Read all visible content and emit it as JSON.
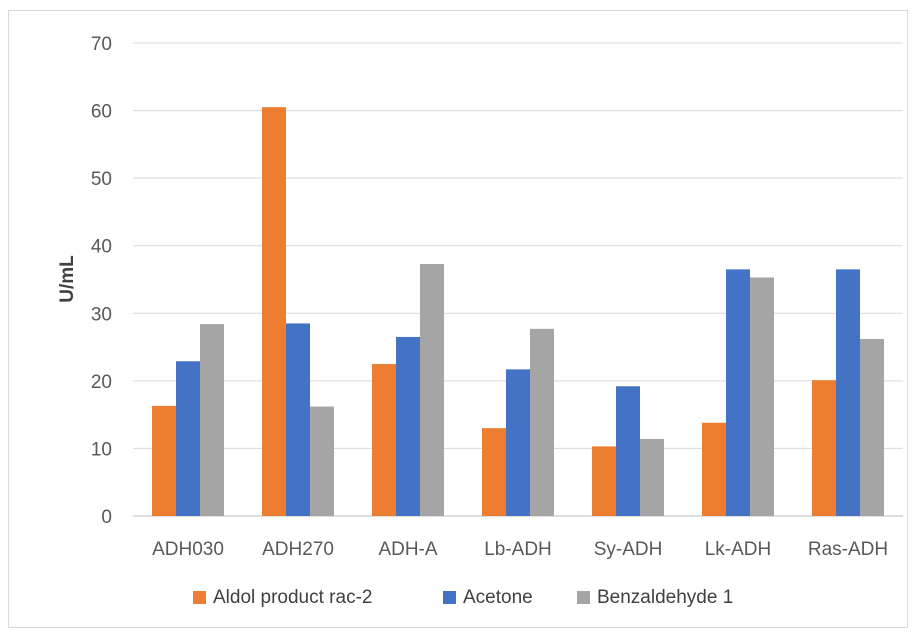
{
  "chart_data": {
    "type": "bar",
    "title": "",
    "xlabel": "",
    "ylabel": "U/mL",
    "ylim": [
      0,
      70
    ],
    "yticks": [
      0,
      10,
      20,
      30,
      40,
      50,
      60,
      70
    ],
    "grid": true,
    "legend_position": "bottom",
    "categories": [
      "ADH030",
      "ADH270",
      "ADH-A",
      "Lb-ADH",
      "Sy-ADH",
      "Lk-ADH",
      "Ras-ADH"
    ],
    "series": [
      {
        "name": "Aldol product rac-2",
        "color": "#ed7d31",
        "values": [
          16.3,
          60.5,
          22.5,
          13.0,
          10.3,
          13.8,
          20.1
        ]
      },
      {
        "name": "Acetone",
        "color": "#4472c4",
        "values": [
          22.9,
          28.5,
          26.5,
          21.7,
          19.2,
          36.5,
          36.5
        ]
      },
      {
        "name": "Benzaldehyde 1",
        "color": "#a5a5a5",
        "values": [
          28.4,
          16.2,
          37.3,
          27.7,
          11.4,
          35.3,
          26.2
        ]
      }
    ]
  }
}
